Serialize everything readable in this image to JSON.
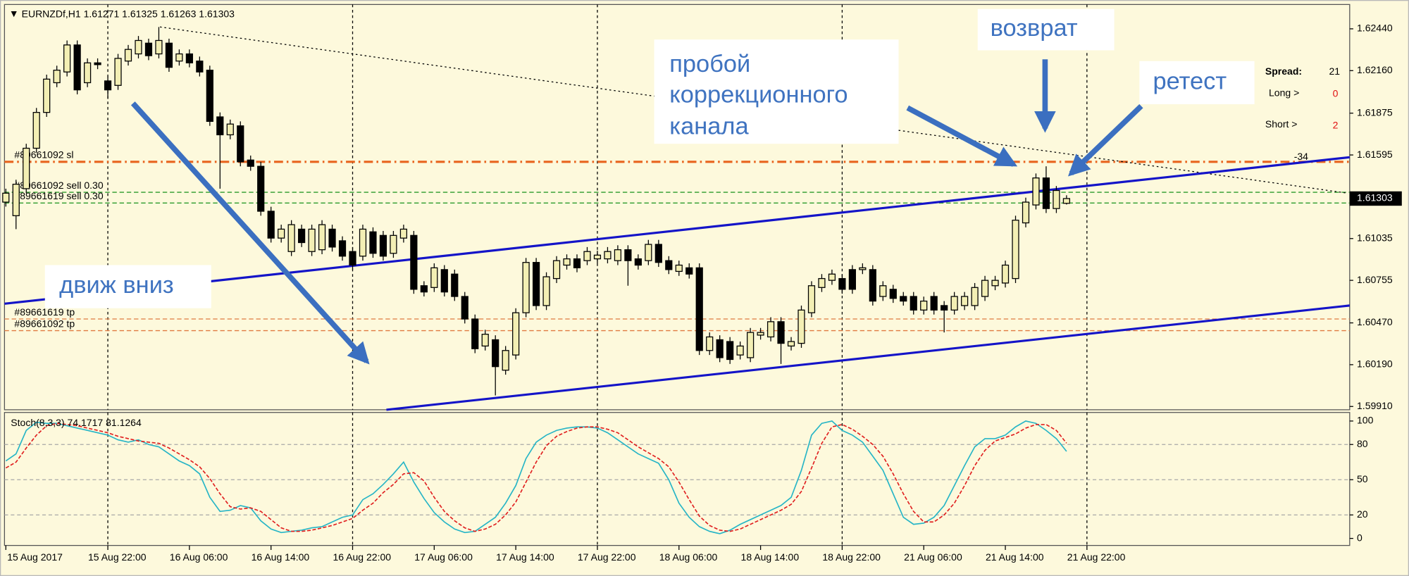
{
  "chart_data": [
    {
      "type": "candlestick",
      "title": "EURNZDf,H1",
      "categories": [
        "15 Aug 2017",
        null,
        null,
        null,
        null,
        null,
        null,
        null,
        null,
        null,
        "15 Aug 22:00",
        null,
        null,
        null,
        null,
        null,
        null,
        null,
        "16 Aug 06:00",
        null,
        null,
        null,
        null,
        null,
        null,
        null,
        "16 Aug 14:00",
        null,
        null,
        null,
        null,
        null,
        null,
        null,
        "16 Aug 22:00",
        null,
        null,
        null,
        null,
        null,
        null,
        null,
        "17 Aug 06:00",
        null,
        null,
        null,
        null,
        null,
        null,
        null,
        "17 Aug 14:00",
        null,
        null,
        null,
        null,
        null,
        null,
        null,
        "17 Aug 22:00",
        null,
        null,
        null,
        null,
        null,
        null,
        null,
        "18 Aug 06:00",
        null,
        null,
        null,
        null,
        null,
        null,
        null,
        "18 Aug 14:00",
        null,
        null,
        null,
        null,
        null,
        null,
        null,
        "18 Aug 22:00",
        null,
        null,
        null,
        null,
        null,
        null,
        null,
        "21 Aug 06:00",
        null,
        null,
        null,
        null,
        null,
        null,
        null,
        "21 Aug 14:00",
        null,
        null,
        null,
        null,
        null,
        null,
        null,
        "21 Aug 22:00"
      ],
      "open": [
        1.61279,
        1.61188,
        1.61369,
        1.6164,
        1.6188,
        1.62079,
        1.62151,
        1.62332,
        1.62079,
        1.62212,
        1.62091,
        1.62061,
        1.62224,
        1.62272,
        1.62344,
        1.62272,
        1.62344,
        1.62224,
        1.62272,
        1.62224,
        1.62163,
        1.6185,
        1.6173,
        1.6179,
        1.61561,
        1.61519,
        1.61218,
        1.61038,
        1.60948,
        1.61098,
        1.60948,
        1.6096,
        1.61098,
        1.6102,
        1.60948,
        1.60917,
        1.6108,
        1.61056,
        1.60936,
        1.61038,
        1.61056,
        1.60719,
        1.60707,
        1.60827,
        1.60797,
        1.60647,
        1.60496,
        1.60315,
        1.60357,
        1.60153,
        1.60255,
        1.60538,
        1.60875,
        1.60586,
        1.60767,
        1.60857,
        1.60899,
        1.60887,
        1.60899,
        1.60899,
        1.60887,
        1.6096,
        1.60899,
        1.60887,
        1.60996,
        1.60887,
        1.60815,
        1.60839,
        1.60839,
        1.60285,
        1.60357,
        1.60345,
        1.60255,
        1.60237,
        1.60388,
        1.60376,
        1.60478,
        1.60315,
        1.60333,
        1.60538,
        1.60707,
        1.60755,
        1.60767,
        1.60827,
        1.60827,
        1.60827,
        1.60647,
        1.60695,
        1.60647,
        1.60647,
        1.60556,
        1.60647,
        1.60586,
        1.60556,
        1.60586,
        1.60586,
        1.60647,
        1.60719,
        1.60737,
        1.60767,
        1.6114,
        1.6126,
        1.61441,
        1.61236,
        1.61271,
        null,
        null
      ],
      "high": [
        1.61369,
        1.61429,
        1.6167,
        1.6191,
        1.62133,
        1.62193,
        1.62362,
        1.62362,
        1.62242,
        1.62242,
        1.62121,
        1.62272,
        1.62332,
        1.62392,
        1.62374,
        1.62452,
        1.62374,
        1.62302,
        1.62302,
        1.62254,
        1.62193,
        1.6188,
        1.61832,
        1.6182,
        1.61591,
        1.61549,
        1.61248,
        1.61128,
        1.61158,
        1.61128,
        1.61128,
        1.61158,
        1.61128,
        1.6105,
        1.60978,
        1.61128,
        1.6111,
        1.61086,
        1.61086,
        1.61128,
        1.61086,
        1.60749,
        1.60869,
        1.60857,
        1.60827,
        1.60677,
        1.60526,
        1.60424,
        1.60387,
        1.60315,
        1.60568,
        1.60905,
        1.60905,
        1.60809,
        1.60917,
        1.60929,
        1.60929,
        1.60978,
        1.60954,
        1.60978,
        1.6099,
        1.6099,
        1.60929,
        1.61026,
        1.61026,
        1.60917,
        1.60887,
        1.60869,
        1.60869,
        1.60406,
        1.60387,
        1.60375,
        1.60345,
        1.60436,
        1.60436,
        1.60508,
        1.60508,
        1.60375,
        1.60586,
        1.60749,
        1.60797,
        1.60827,
        1.60797,
        1.60857,
        1.60869,
        1.60857,
        1.60749,
        1.60725,
        1.60677,
        1.60677,
        1.60646,
        1.60677,
        1.60616,
        1.60677,
        1.60677,
        1.60737,
        1.60785,
        1.60785,
        1.60887,
        1.61188,
        1.61309,
        1.61471,
        1.61519,
        1.61387,
        1.61325,
        null,
        null
      ],
      "low": [
        1.61249,
        1.61098,
        1.61339,
        1.6161,
        1.6185,
        1.62049,
        1.62121,
        1.62001,
        1.62049,
        1.6217,
        1.61971,
        1.62031,
        1.62194,
        1.62242,
        1.6223,
        1.62242,
        1.62152,
        1.62194,
        1.62182,
        1.62121,
        1.6179,
        1.61369,
        1.617,
        1.61519,
        1.61489,
        1.61188,
        1.61008,
        1.61008,
        1.60918,
        1.60978,
        1.60918,
        1.6093,
        1.60948,
        1.60887,
        1.60827,
        1.60887,
        1.60906,
        1.60887,
        1.60906,
        1.61008,
        1.60665,
        1.60647,
        1.60677,
        1.60647,
        1.60617,
        1.60466,
        1.60267,
        1.60285,
        1.59984,
        1.60123,
        1.60225,
        1.60508,
        1.60556,
        1.60556,
        1.60737,
        1.60827,
        1.60809,
        1.60857,
        1.60869,
        1.60869,
        1.60857,
        1.60719,
        1.60827,
        1.60857,
        1.60845,
        1.60797,
        1.60785,
        1.60767,
        1.60255,
        1.60255,
        1.60207,
        1.60195,
        1.60225,
        1.60207,
        1.60358,
        1.60346,
        1.60195,
        1.60285,
        1.60303,
        1.60508,
        1.60677,
        1.60725,
        1.60665,
        1.60665,
        1.60797,
        1.60586,
        1.60617,
        1.60604,
        1.60586,
        1.60526,
        1.60526,
        1.60526,
        1.60406,
        1.60526,
        1.60556,
        1.60556,
        1.60617,
        1.60689,
        1.60707,
        1.60737,
        1.6111,
        1.6123,
        1.61206,
        1.61206,
        1.61263,
        null,
        null
      ],
      "close": [
        1.61339,
        1.61399,
        1.6164,
        1.6188,
        1.62103,
        1.62163,
        1.62332,
        1.62031,
        1.62212,
        1.622,
        1.62031,
        1.62242,
        1.62302,
        1.62362,
        1.6226,
        1.62362,
        1.62182,
        1.62272,
        1.62212,
        1.62151,
        1.6182,
        1.6173,
        1.61802,
        1.61549,
        1.61519,
        1.61218,
        1.61038,
        1.61098,
        1.61128,
        1.61008,
        1.61098,
        1.61128,
        1.60978,
        1.60917,
        1.60857,
        1.61098,
        1.60936,
        1.60917,
        1.61056,
        1.61098,
        1.60695,
        1.60677,
        1.60839,
        1.60677,
        1.60647,
        1.60496,
        1.60297,
        1.60394,
        1.60177,
        1.60285,
        1.60538,
        1.60875,
        1.60586,
        1.60779,
        1.60887,
        1.60899,
        1.60839,
        1.60948,
        1.60924,
        1.60948,
        1.6096,
        1.60887,
        1.60857,
        1.60996,
        1.60875,
        1.60827,
        1.60857,
        1.60797,
        1.60285,
        1.60376,
        1.60237,
        1.60225,
        1.60315,
        1.60406,
        1.60406,
        1.60478,
        1.60333,
        1.60345,
        1.60556,
        1.60719,
        1.60767,
        1.60797,
        1.60695,
        1.60695,
        1.60839,
        1.60616,
        1.60719,
        1.60634,
        1.60616,
        1.60556,
        1.60616,
        1.60556,
        1.60556,
        1.60647,
        1.60647,
        1.60707,
        1.60755,
        1.60755,
        1.60857,
        1.61158,
        1.61279,
        1.61441,
        1.61236,
        1.61357,
        1.61303,
        null,
        null
      ],
      "bull_color": "#f3efb4",
      "bear_color": "#000000",
      "ylim": [
        1.59888,
        1.62603
      ],
      "yticks": [
        {
          "value": 1.6244,
          "label": "1.62440"
        },
        {
          "value": 1.6216,
          "label": "1.62160"
        },
        {
          "value": 1.61875,
          "label": "1.61875"
        },
        {
          "value": 1.61595,
          "label": "1.61595"
        },
        {
          "value": 1.61035,
          "label": "1.61035"
        },
        {
          "value": 1.60755,
          "label": "1.60755"
        },
        {
          "value": 1.6047,
          "label": "1.60470"
        },
        {
          "value": 1.6019,
          "label": "1.60190"
        },
        {
          "value": 1.5991,
          "label": "1.59910"
        }
      ],
      "order_lines": [
        {
          "label": "#89661092 sl",
          "value": 1.61549,
          "color": "#e8641e",
          "style": "dashdot"
        },
        {
          "label": "#89661092 sell 0.30",
          "value": 1.61345,
          "color": "#2a9a2a",
          "style": "dashed"
        },
        {
          "label": "#89661619 sell 0.30",
          "value": 1.61273,
          "color": "#2a9a2a",
          "style": "dashed"
        },
        {
          "label": "#89661619 tp",
          "value": 1.60496,
          "color": "#e07a40",
          "style": "dashed"
        },
        {
          "label": "#89661092 tp",
          "value": 1.60418,
          "color": "#e07a40",
          "style": "dashed"
        }
      ],
      "annotations": {
        "down": "движ вниз",
        "breakout": [
          "пробой",
          "коррекционного",
          "канала"
        ],
        "return": "возврат",
        "retest": "ретест"
      }
    },
    {
      "type": "line",
      "title": "Stoch(8,3,3)",
      "series": [
        {
          "color": "#26b5c6",
          "style": "solid",
          "values": [
            66,
            72,
            92,
            99,
            98,
            98,
            96,
            94,
            92,
            90,
            88,
            84,
            82,
            84,
            80,
            78,
            72,
            66,
            62,
            55,
            35,
            23,
            24,
            28,
            26,
            15,
            8,
            5,
            6,
            7,
            9,
            10,
            14,
            18,
            20,
            33,
            38,
            46,
            55,
            65,
            48,
            34,
            22,
            14,
            8,
            5,
            6,
            12,
            18,
            30,
            45,
            68,
            82,
            88,
            92,
            94,
            95,
            95,
            94,
            90,
            84,
            78,
            72,
            68,
            64,
            50,
            30,
            18,
            10,
            6,
            4,
            7,
            12,
            16,
            20,
            24,
            28,
            35,
            58,
            88,
            98,
            100,
            92,
            88,
            82,
            70,
            58,
            38,
            18,
            12,
            13,
            18,
            28,
            45,
            62,
            78,
            85,
            85,
            88,
            95,
            100,
            98,
            92,
            85,
            74.1717,
            null,
            null
          ]
        },
        {
          "color": "#e02020",
          "style": "dashed",
          "values": [
            60,
            65,
            77,
            88,
            96,
            98,
            97,
            96,
            94,
            92,
            90,
            87,
            85,
            83,
            82,
            81,
            77,
            72,
            67,
            61,
            51,
            38,
            27,
            25,
            26,
            23,
            16,
            9,
            6,
            6,
            7,
            9,
            11,
            14,
            17,
            24,
            30,
            39,
            46,
            55,
            56,
            49,
            35,
            23,
            15,
            9,
            6,
            8,
            12,
            20,
            31,
            48,
            65,
            79,
            87,
            91,
            94,
            95,
            95,
            93,
            90,
            84,
            78,
            73,
            68,
            61,
            48,
            33,
            19,
            11,
            7,
            6,
            8,
            12,
            16,
            20,
            24,
            29,
            40,
            60,
            81,
            95,
            97,
            93,
            87,
            80,
            70,
            55,
            38,
            23,
            14,
            14,
            20,
            30,
            45,
            62,
            75,
            83,
            86,
            89,
            94,
            97,
            97,
            92,
            81.1264,
            null,
            null
          ]
        }
      ],
      "ylim": [
        -6,
        105
      ],
      "yticks": [
        100,
        80,
        50,
        20,
        0
      ],
      "levels": [
        80,
        50,
        20
      ],
      "level_color": "#a8a8a8"
    }
  ],
  "panel": {
    "spread_label": "Spread:",
    "spread": 21,
    "long_label": "Long >",
    "long": 0,
    "short_label": "Short >",
    "short": 2,
    "result": -34
  }
}
